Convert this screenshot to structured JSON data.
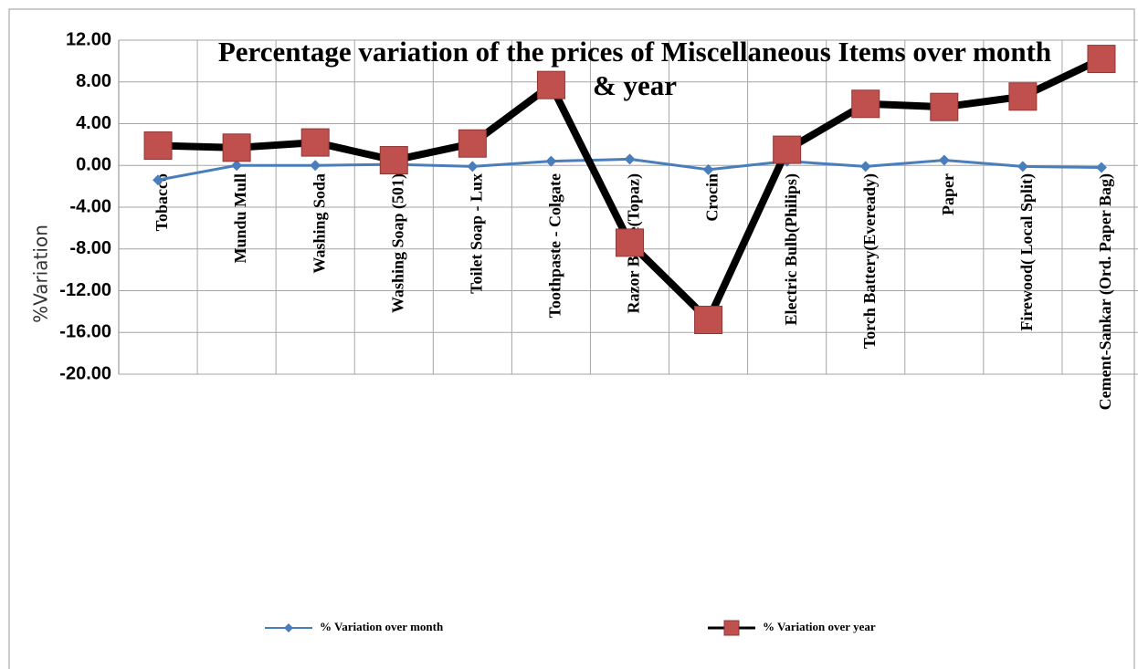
{
  "chart_data": {
    "type": "line",
    "title": "Percentage variation of the prices of Miscellaneous Items over month & year",
    "y_label": "%Variation",
    "categories": [
      "Tobacco",
      "Mundu Mull",
      "Washing Soda",
      "Washing Soap (501)",
      "Toilet Soap - Lux",
      "Toothpaste - Colgate",
      "Razor Blade(Topaz)",
      "Crocin",
      "Electric Bulb(Philips)",
      "Torch Battery(Eveready)",
      "Paper",
      "Firewood( Local Split)",
      "Cement-Sankar (Ord. Paper Bag)"
    ],
    "series": [
      {
        "name": "%  Variation over month",
        "color": "#4a7ebb",
        "marker_color": "#4a7ebb",
        "marker": "diamond",
        "values": [
          -1.4,
          0,
          0,
          0.1,
          -0.1,
          0.4,
          0.6,
          -0.4,
          0.4,
          -0.1,
          0.5,
          -0.1,
          -0.2
        ]
      },
      {
        "name": "%  Variation over year",
        "color": "#000000",
        "marker_color": "#c0504d",
        "marker": "square",
        "values": [
          1.9,
          1.7,
          2.2,
          0.5,
          2.1,
          7.7,
          -7.4,
          -14.8,
          1.5,
          5.9,
          5.6,
          6.6,
          10.2
        ]
      }
    ],
    "ylim": [
      -20,
      12
    ],
    "yticks": [
      {
        "value": 12,
        "label": "12.00"
      },
      {
        "value": 8,
        "label": "8.00"
      },
      {
        "value": 4,
        "label": "4.00"
      },
      {
        "value": 0,
        "label": "0.00"
      },
      {
        "value": -4,
        "label": "-4.00"
      },
      {
        "value": -8,
        "label": "-8.00"
      },
      {
        "value": -12,
        "label": "-12.00"
      },
      {
        "value": -16,
        "label": "-16.00"
      },
      {
        "value": -20,
        "label": "-20.00"
      }
    ],
    "grid": true,
    "legend": "bottom"
  }
}
